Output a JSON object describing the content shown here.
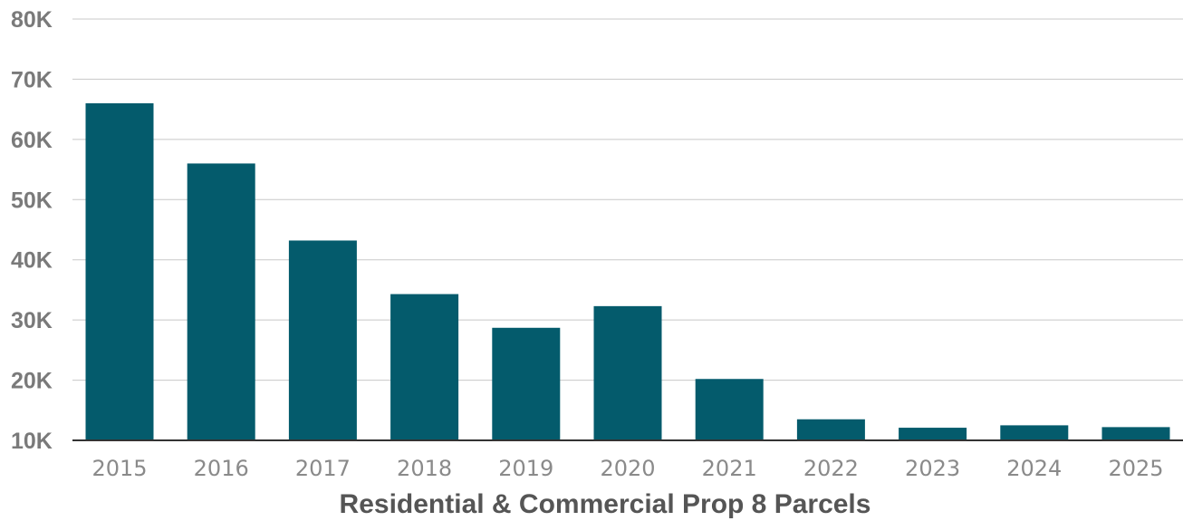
{
  "chart_data": {
    "type": "bar",
    "categories": [
      "2015",
      "2016",
      "2017",
      "2018",
      "2019",
      "2020",
      "2021",
      "2022",
      "2023",
      "2024",
      "2025"
    ],
    "values": [
      66000,
      56000,
      43200,
      34300,
      28700,
      32300,
      20200,
      13500,
      12100,
      12500,
      12200
    ],
    "xlabel": "Residential & Commercial Prop 8 Parcels",
    "ylabel": "",
    "ylim": [
      10000,
      80000
    ],
    "yticks": [
      10000,
      20000,
      30000,
      40000,
      50000,
      60000,
      70000,
      80000
    ],
    "ytick_labels": [
      "10K",
      "20K",
      "30K",
      "40K",
      "50K",
      "60K",
      "70K",
      "80K"
    ],
    "grid": true,
    "bar_color": "#045b6c",
    "grid_color": "#c8c8c8",
    "axis_color": "#333333"
  }
}
